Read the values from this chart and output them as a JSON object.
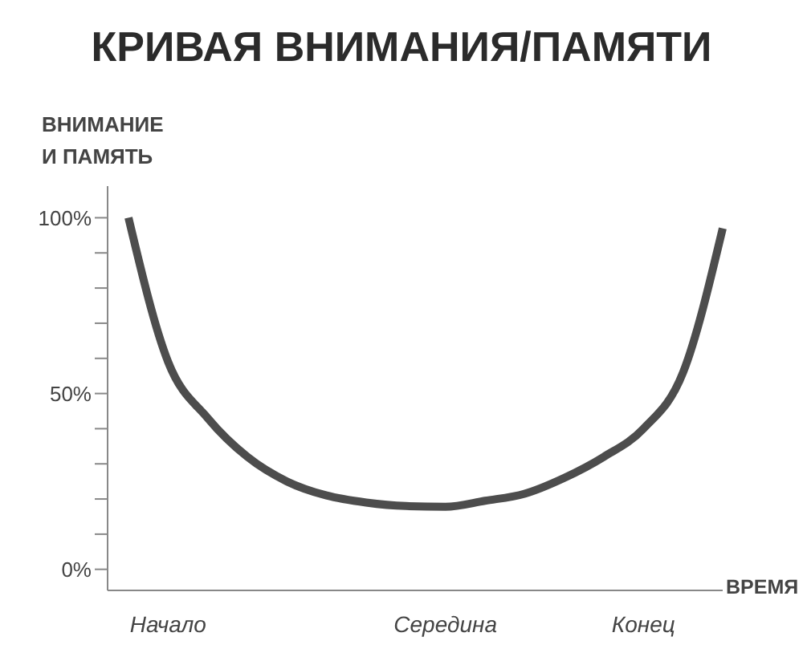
{
  "chart_data": {
    "type": "line",
    "title": "КРИВАЯ ВНИМАНИЯ/ПАМЯТИ",
    "xlabel": "ВРЕМЯ",
    "ylabel": "ВНИМАНИЕ\nИ ПАМЯТЬ",
    "categories": [
      null,
      "Начало",
      null,
      null,
      null,
      null,
      null,
      null,
      "Середина",
      null,
      null,
      null,
      null,
      "Конец",
      null,
      null
    ],
    "series": [
      {
        "color": "#4d4d4d",
        "values": [
          100,
          59,
          43,
          32,
          25,
          21,
          19,
          18,
          17.8,
          19.5,
          21.5,
          26,
          32,
          40,
          56,
          97
        ]
      }
    ],
    "ylim": [
      -6,
      109
    ],
    "yticks": [
      {
        "value": 0,
        "label": "0%"
      },
      {
        "value": 10,
        "label": null
      },
      {
        "value": 20,
        "label": null
      },
      {
        "value": 30,
        "label": null
      },
      {
        "value": 40,
        "label": null
      },
      {
        "value": 50,
        "label": "50%"
      },
      {
        "value": 60,
        "label": null
      },
      {
        "value": 70,
        "label": null
      },
      {
        "value": 80,
        "label": null
      },
      {
        "value": 90,
        "label": null
      },
      {
        "value": 100,
        "label": "100%"
      }
    ],
    "grid": false,
    "legend": false,
    "marker": "none",
    "line_style": "solid"
  }
}
